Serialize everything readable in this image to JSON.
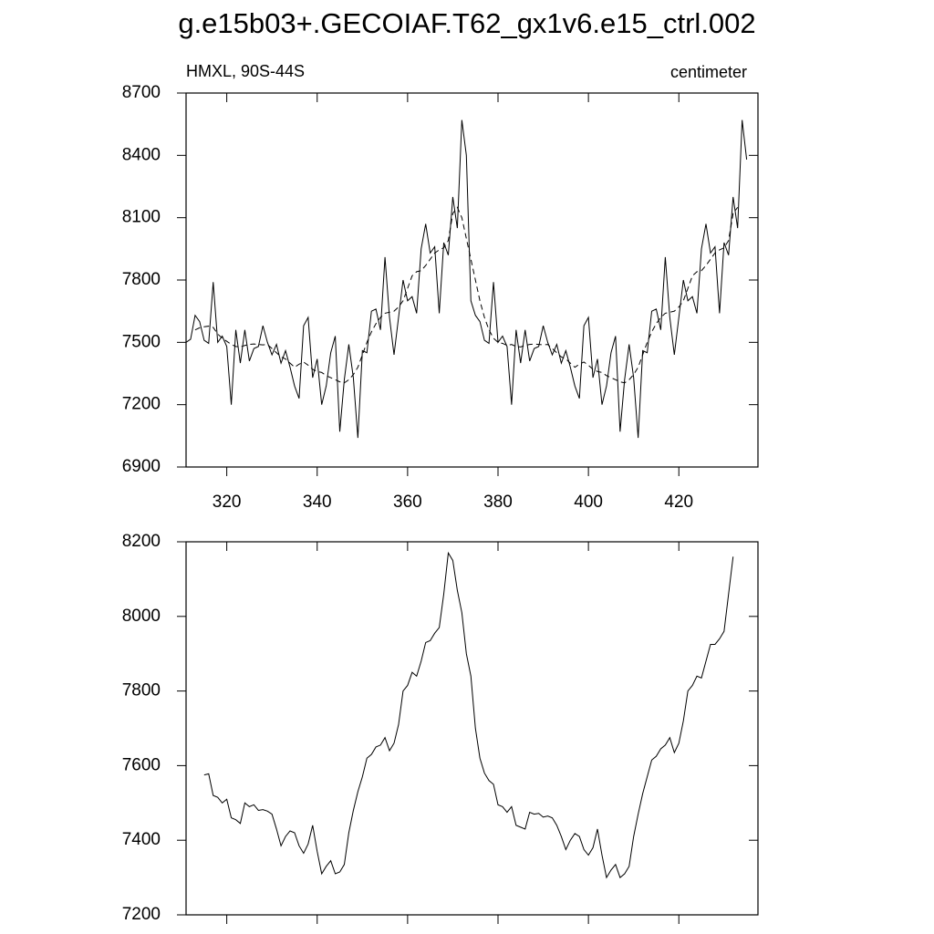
{
  "chart_data": [
    {
      "type": "line",
      "title": "g.e15b03+.GECOIAF.T62_gx1v6.e15_ctrl.002",
      "subtitle_left": "HMXL, 90S-44S",
      "subtitle_right": "centimeter",
      "x": [
        311,
        312,
        313,
        314,
        315,
        316,
        317,
        318,
        319,
        320,
        321,
        322,
        323,
        324,
        325,
        326,
        327,
        328,
        329,
        330,
        331,
        332,
        333,
        334,
        335,
        336,
        337,
        338,
        339,
        340,
        341,
        342,
        343,
        344,
        345,
        346,
        347,
        348,
        349,
        350,
        351,
        352,
        353,
        354,
        355,
        356,
        357,
        358,
        359,
        360,
        361,
        362,
        363,
        364,
        365,
        366,
        367,
        368,
        369,
        370,
        371,
        372,
        373,
        374,
        375,
        376,
        377,
        378,
        379,
        380,
        381,
        382,
        383,
        384,
        385,
        386,
        387,
        388,
        389,
        390,
        391,
        392,
        393,
        394,
        395,
        396,
        397,
        398,
        399,
        400,
        401,
        402,
        403,
        404,
        405,
        406,
        407,
        408,
        409,
        410,
        411,
        412,
        413,
        414,
        415,
        416,
        417,
        418,
        419,
        420,
        421,
        422,
        423,
        424,
        425,
        426,
        427,
        428,
        429,
        430,
        431,
        432,
        433,
        434,
        435
      ],
      "series": [
        {
          "color": "#000000",
          "dashed": false,
          "values": [
            7500,
            7515,
            7630,
            7600,
            7510,
            7495,
            7790,
            7500,
            7530,
            7480,
            7200,
            7560,
            7400,
            7560,
            7410,
            7470,
            7480,
            7580,
            7500,
            7440,
            7490,
            7400,
            7460,
            7380,
            7290,
            7230,
            7580,
            7620,
            7330,
            7420,
            7200,
            7290,
            7450,
            7530,
            7070,
            7320,
            7490,
            7330,
            7040,
            7460,
            7450,
            7650,
            7660,
            7560,
            7910,
            7620,
            7440,
            7620,
            7800,
            7700,
            7720,
            7640,
            7950,
            8070,
            7930,
            7960,
            7640,
            7980,
            7920,
            8200,
            8050,
            8570,
            8400,
            7700,
            7630,
            7600,
            7510,
            7495,
            7790,
            7500,
            7530,
            7480,
            7200,
            7560,
            7400,
            7560,
            7410,
            7470,
            7480,
            7580,
            7500,
            7440,
            7490,
            7400,
            7460,
            7380,
            7290,
            7230,
            7580,
            7620,
            7330,
            7420,
            7200,
            7290,
            7450,
            7530,
            7070,
            7320,
            7490,
            7330,
            7040,
            7460,
            7450,
            7650,
            7660,
            7560,
            7910,
            7620,
            7440,
            7620,
            7800,
            7700,
            7720,
            7640,
            7950,
            8070,
            7930,
            7960,
            7640,
            7980,
            7920,
            8200,
            8050,
            8570,
            8380
          ]
        },
        {
          "color": "#000000",
          "dashed": true,
          "values": [
            null,
            null,
            7560,
            7570,
            7575,
            7578,
            7572,
            7540,
            7520,
            7505,
            7490,
            7480,
            7478,
            7485,
            7490,
            7492,
            7490,
            7488,
            7490,
            7470,
            7450,
            7430,
            7420,
            7400,
            7380,
            7395,
            7405,
            7390,
            7370,
            7360,
            7355,
            7340,
            7330,
            7320,
            7310,
            7305,
            7320,
            7345,
            7380,
            7440,
            7500,
            7550,
            7590,
            7620,
            7640,
            7645,
            7650,
            7670,
            7700,
            7760,
            7820,
            7840,
            7845,
            7870,
            7900,
            7930,
            7945,
            7955,
            7990,
            8120,
            8150,
            8100,
            8000,
            7900,
            7800,
            7700,
            7620,
            7560,
            7520,
            7500,
            7495,
            7485,
            7490,
            7480,
            7478,
            7485,
            7490,
            7492,
            7490,
            7488,
            7490,
            7470,
            7450,
            7430,
            7420,
            7400,
            7380,
            7395,
            7405,
            7390,
            7370,
            7360,
            7355,
            7340,
            7330,
            7320,
            7310,
            7305,
            7320,
            7345,
            7380,
            7440,
            7500,
            7550,
            7590,
            7620,
            7640,
            7645,
            7650,
            7670,
            7700,
            7760,
            7820,
            7840,
            7845,
            7870,
            7900,
            7930,
            7945,
            7955,
            7990,
            8120,
            8150,
            null,
            null
          ]
        }
      ],
      "xlim": [
        311,
        437.5
      ],
      "xticks": [
        320,
        340,
        360,
        380,
        400,
        420
      ],
      "xtick_labels": true,
      "ylim": [
        6900,
        8700
      ],
      "yticks": [
        6900,
        7200,
        7500,
        7800,
        8100,
        8400,
        8700
      ]
    },
    {
      "type": "line",
      "x": [
        315,
        316,
        317,
        318,
        319,
        320,
        321,
        322,
        323,
        324,
        325,
        326,
        327,
        328,
        329,
        330,
        331,
        332,
        333,
        334,
        335,
        336,
        337,
        338,
        339,
        340,
        341,
        342,
        343,
        344,
        345,
        346,
        347,
        348,
        349,
        350,
        351,
        352,
        353,
        354,
        355,
        356,
        357,
        358,
        359,
        360,
        361,
        362,
        363,
        364,
        365,
        366,
        367,
        368,
        369,
        370,
        371,
        372,
        373,
        374,
        375,
        376,
        377,
        378,
        379,
        380,
        381,
        382,
        383,
        384,
        385,
        386,
        387,
        388,
        389,
        390,
        391,
        392,
        393,
        394,
        395,
        396,
        397,
        398,
        399,
        400,
        401,
        402,
        403,
        404,
        405,
        406,
        407,
        408,
        409,
        410,
        411,
        412,
        413,
        414,
        415,
        416,
        417,
        418,
        419,
        420,
        421,
        422,
        423,
        424,
        425,
        426,
        427,
        428,
        429,
        430,
        431,
        432
      ],
      "series": [
        {
          "color": "#000000",
          "dashed": false,
          "values": [
            7575,
            7578,
            7520,
            7515,
            7500,
            7510,
            7460,
            7455,
            7445,
            7500,
            7490,
            7495,
            7480,
            7482,
            7478,
            7470,
            7430,
            7385,
            7410,
            7425,
            7420,
            7385,
            7365,
            7390,
            7440,
            7370,
            7310,
            7330,
            7345,
            7310,
            7315,
            7335,
            7420,
            7480,
            7530,
            7570,
            7620,
            7630,
            7650,
            7655,
            7675,
            7640,
            7660,
            7710,
            7800,
            7815,
            7850,
            7840,
            7880,
            7930,
            7935,
            7955,
            7970,
            8060,
            8170,
            8150,
            8070,
            8010,
            7900,
            7840,
            7700,
            7620,
            7580,
            7560,
            7550,
            7495,
            7490,
            7475,
            7490,
            7440,
            7435,
            7430,
            7475,
            7470,
            7472,
            7462,
            7465,
            7460,
            7440,
            7410,
            7375,
            7400,
            7418,
            7410,
            7375,
            7360,
            7380,
            7430,
            7360,
            7300,
            7320,
            7335,
            7300,
            7310,
            7330,
            7410,
            7470,
            7525,
            7570,
            7615,
            7625,
            7645,
            7655,
            7675,
            7635,
            7660,
            7720,
            7800,
            7815,
            7840,
            7835,
            7880,
            7925,
            7925,
            7940,
            7960,
            8060,
            8160
          ]
        }
      ],
      "xlim": [
        311,
        437.5
      ],
      "xticks": [
        320,
        340,
        360,
        380,
        400,
        420
      ],
      "xtick_labels": false,
      "ylim": [
        7200,
        8200
      ],
      "yticks": [
        7200,
        7400,
        7600,
        7800,
        8000,
        8200
      ]
    }
  ]
}
